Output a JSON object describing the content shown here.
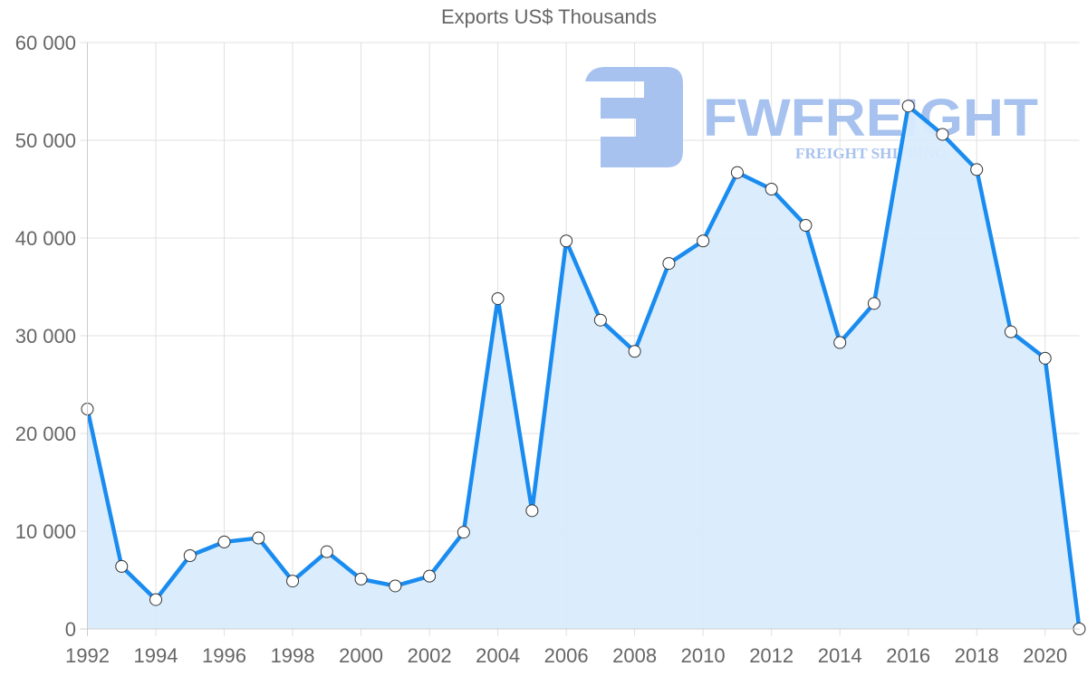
{
  "chart_data": {
    "type": "line",
    "title": "Exports US$ Thousands",
    "xlabel": "",
    "ylabel": "",
    "x": [
      1992,
      1993,
      1994,
      1995,
      1996,
      1997,
      1998,
      1999,
      2000,
      2001,
      2002,
      2003,
      2004,
      2005,
      2006,
      2007,
      2008,
      2009,
      2010,
      2011,
      2012,
      2013,
      2014,
      2015,
      2016,
      2017,
      2018,
      2019,
      2020,
      2021
    ],
    "series": [
      {
        "name": "Exports US$ Thousands",
        "values": [
          22500,
          6400,
          3000,
          7500,
          8900,
          9300,
          4900,
          7900,
          5100,
          4400,
          5400,
          9900,
          33800,
          12100,
          39700,
          31600,
          28400,
          37400,
          39700,
          46700,
          45000,
          41300,
          29300,
          33300,
          53500,
          50600,
          47000,
          30400,
          27700,
          0
        ],
        "fill": true
      }
    ],
    "x_tick_labels": [
      "1992",
      "1994",
      "1996",
      "1998",
      "2000",
      "2002",
      "2004",
      "2006",
      "2008",
      "2010",
      "2012",
      "2014",
      "2016",
      "2018",
      "2020"
    ],
    "y_tick_labels": [
      "0",
      "10 000",
      "20 000",
      "30 000",
      "40 000",
      "50 000",
      "60 000"
    ],
    "y_ticks": [
      0,
      10000,
      20000,
      30000,
      40000,
      50000,
      60000
    ],
    "ylim": [
      0,
      60000
    ],
    "xlim": [
      1992,
      2021
    ],
    "grid": true,
    "legend": null
  },
  "style": {
    "line_color": "#1a8cf0",
    "fill_color": "#d9ecfd",
    "point_fill": "#ffffff",
    "point_stroke": "#333333",
    "grid_color": "#e0e0e0",
    "axis_color": "#cccccc",
    "text_color": "#666666",
    "watermark_color": "#a7c2ef"
  },
  "watermark": {
    "brand": "FWFREIGHT",
    "tagline": "FREIGHT SHIPPING",
    "icon": "fwfreight-logo-icon"
  }
}
